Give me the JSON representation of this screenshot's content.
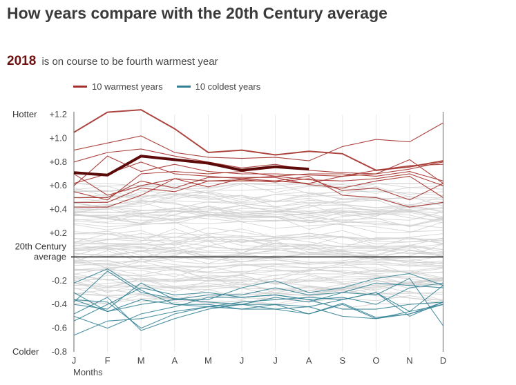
{
  "title": "How years compare with the 20th Century average",
  "subtitle": {
    "year": "2018",
    "text": "is on course to be fourth warmest year"
  },
  "legend": [
    {
      "label": "10 warmest years",
      "color": "#a3302a"
    },
    {
      "label": "10 coldest years",
      "color": "#2e7f92"
    }
  ],
  "chart_data": {
    "type": "line",
    "ylim": [
      -0.8,
      1.2
    ],
    "y_ticks": [
      "+1.2",
      "+1.0",
      "+0.8",
      "+0.6",
      "+0.4",
      "+0.2",
      "-0.2",
      "-0.4",
      "-0.6",
      "-0.8"
    ],
    "y_tick_values": [
      1.2,
      1.0,
      0.8,
      0.6,
      0.4,
      0.2,
      -0.2,
      -0.4,
      -0.6,
      -0.8
    ],
    "top_label": "Hotter",
    "bottom_label": "Colder",
    "baseline_label": [
      "20th Century",
      "average"
    ],
    "categories": [
      "J",
      "F",
      "M",
      "A",
      "M",
      "J",
      "J",
      "A",
      "S",
      "O",
      "N",
      "D"
    ],
    "xlabel": "Months",
    "colors": {
      "warm": "#a3302a",
      "cold": "#2e7f92",
      "highlight": "#5c0a0a",
      "other": "#d0d0d0",
      "baseline": "#333333",
      "axis": "#9a9a9a",
      "grid": "#e8e8e8"
    },
    "highlight_series": {
      "values": [
        0.71,
        0.69,
        0.85,
        0.82,
        0.79,
        0.73,
        0.76,
        0.74
      ]
    },
    "warm_series": [
      {
        "values": [
          1.05,
          1.22,
          1.24,
          1.08,
          0.88,
          0.9,
          0.86,
          0.89,
          0.87,
          0.73,
          0.76,
          0.81
        ]
      },
      {
        "values": [
          0.9,
          0.96,
          1.02,
          0.88,
          0.84,
          0.83,
          0.84,
          0.81,
          0.93,
          0.99,
          0.97,
          1.13
        ]
      },
      {
        "values": [
          0.8,
          0.88,
          0.91,
          0.85,
          0.8,
          0.75,
          0.78,
          0.73,
          0.71,
          0.7,
          0.82,
          0.62
        ]
      },
      {
        "values": [
          0.6,
          0.85,
          0.72,
          0.78,
          0.72,
          0.7,
          0.7,
          0.69,
          0.68,
          0.73,
          0.77,
          0.78
        ]
      },
      {
        "values": [
          0.62,
          0.7,
          0.8,
          0.7,
          0.68,
          0.66,
          0.68,
          0.7,
          0.7,
          0.68,
          0.72,
          0.64
        ]
      },
      {
        "values": [
          0.55,
          0.48,
          0.7,
          0.72,
          0.7,
          0.72,
          0.68,
          0.65,
          0.64,
          0.66,
          0.7,
          0.6
        ]
      },
      {
        "values": [
          0.7,
          0.52,
          0.6,
          0.66,
          0.64,
          0.64,
          0.64,
          0.62,
          0.68,
          0.7,
          0.74,
          0.8
        ]
      },
      {
        "values": [
          0.5,
          0.5,
          0.64,
          0.58,
          0.67,
          0.67,
          0.67,
          0.61,
          0.58,
          0.64,
          0.68,
          0.5
        ]
      },
      {
        "values": [
          0.46,
          0.46,
          0.58,
          0.55,
          0.64,
          0.65,
          0.63,
          0.66,
          0.56,
          0.58,
          0.48,
          0.62
        ]
      },
      {
        "values": [
          0.42,
          0.42,
          0.52,
          0.66,
          0.59,
          0.66,
          0.64,
          0.68,
          0.52,
          0.5,
          0.42,
          0.46
        ]
      }
    ],
    "cold_series": [
      {
        "values": [
          -0.36,
          -0.38,
          -0.6,
          -0.48,
          -0.42,
          -0.44,
          -0.44,
          -0.48,
          -0.39,
          -0.51,
          -0.48,
          -0.38
        ]
      },
      {
        "values": [
          -0.38,
          -0.12,
          -0.3,
          -0.35,
          -0.38,
          -0.4,
          -0.4,
          -0.48,
          -0.4,
          -0.52,
          -0.48,
          -0.4
        ]
      },
      {
        "values": [
          -0.22,
          -0.1,
          -0.28,
          -0.4,
          -0.42,
          -0.38,
          -0.36,
          -0.34,
          -0.36,
          -0.3,
          -0.5,
          -0.38
        ]
      },
      {
        "values": [
          -0.48,
          -0.34,
          -0.62,
          -0.52,
          -0.44,
          -0.4,
          -0.44,
          -0.42,
          -0.5,
          -0.52,
          -0.46,
          -0.4
        ]
      },
      {
        "values": [
          -0.5,
          -0.6,
          -0.48,
          -0.42,
          -0.34,
          -0.34,
          -0.32,
          -0.36,
          -0.44,
          -0.44,
          -0.4,
          -0.38
        ]
      },
      {
        "values": [
          -0.3,
          -0.46,
          -0.4,
          -0.36,
          -0.36,
          -0.26,
          -0.2,
          -0.3,
          -0.26,
          -0.18,
          -0.14,
          -0.24
        ]
      },
      {
        "values": [
          -0.54,
          -0.4,
          -0.26,
          -0.32,
          -0.3,
          -0.34,
          -0.32,
          -0.36,
          -0.34,
          -0.4,
          -0.26,
          -0.22
        ]
      },
      {
        "values": [
          -0.66,
          -0.54,
          -0.52,
          -0.46,
          -0.42,
          -0.4,
          -0.34,
          -0.38,
          -0.3,
          -0.22,
          -0.24,
          -0.26
        ]
      },
      {
        "values": [
          -0.4,
          -0.44,
          -0.22,
          -0.36,
          -0.32,
          -0.32,
          -0.26,
          -0.32,
          -0.3,
          -0.32,
          -0.18,
          -0.58
        ]
      },
      {
        "values": [
          -0.36,
          -0.46,
          -0.36,
          -0.4,
          -0.4,
          -0.44,
          -0.4,
          -0.42,
          -0.36,
          -0.3,
          -0.46,
          -0.24
        ]
      }
    ]
  }
}
